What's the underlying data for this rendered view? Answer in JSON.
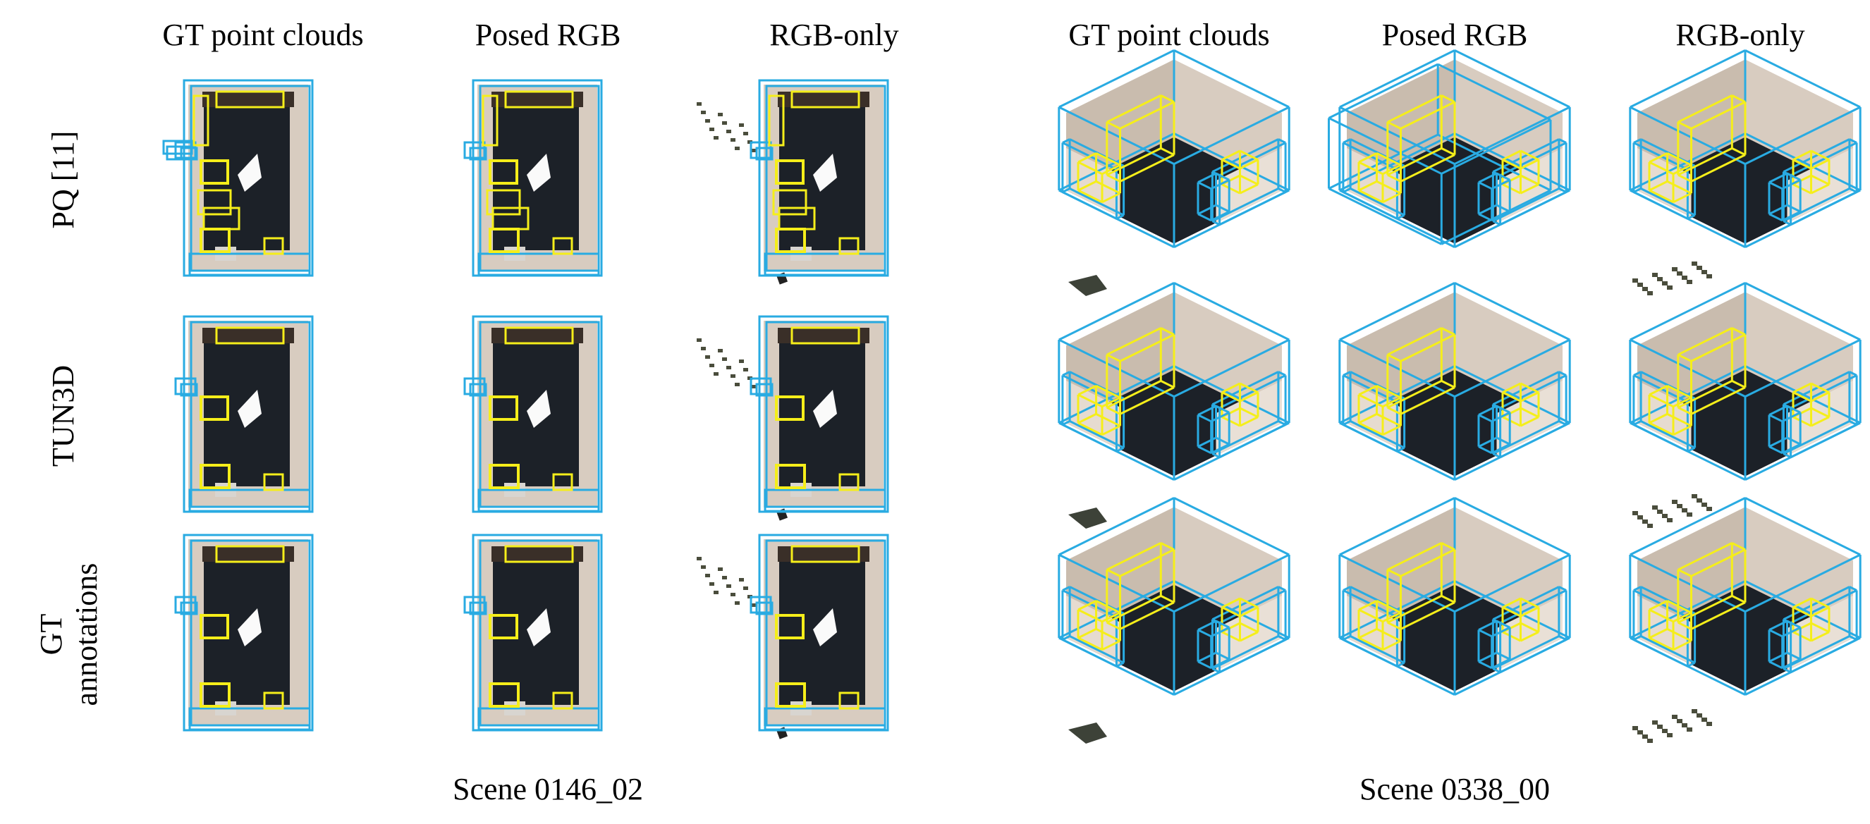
{
  "figure": {
    "column_titles": [
      "GT point clouds",
      "Posed RGB",
      "RGB-only",
      "GT point clouds",
      "Posed RGB",
      "RGB-only"
    ],
    "row_labels": [
      "PQ [11]",
      "TUN3D",
      "GT\nannotations"
    ],
    "scene_labels": [
      "Scene 0146_02",
      "Scene 0338_00"
    ],
    "colors": {
      "layout_box": "#29abe2",
      "object_box": "#f5ee1a",
      "wall": "#d8ccc0",
      "floor": "#1c2128",
      "fringe": "#4a4d3c"
    },
    "panel_icons": [
      "point-cloud-reconstruction",
      "3d-bounding-boxes"
    ]
  }
}
